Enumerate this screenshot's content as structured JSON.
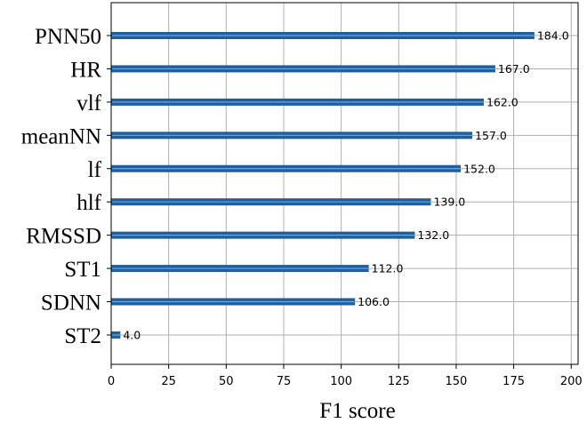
{
  "chart_data": {
    "type": "bar",
    "orientation": "horizontal",
    "categories": [
      "PNN50",
      "HR",
      "vlf",
      "meanNN",
      "lf",
      "hlf",
      "RMSSD",
      "ST1",
      "SDNN",
      "ST2"
    ],
    "values": [
      184.0,
      167.0,
      162.0,
      157.0,
      152.0,
      139.0,
      132.0,
      112.0,
      106.0,
      4.0
    ],
    "value_labels": [
      "184.0",
      "167.0",
      "162.0",
      "157.0",
      "152.0",
      "139.0",
      "132.0",
      "112.0",
      "106.0",
      "4.0"
    ],
    "xlabel": "F1 score",
    "ylabel": "",
    "title": "",
    "xlim": [
      0,
      203
    ],
    "xticks": [
      0,
      25,
      50,
      75,
      100,
      125,
      150,
      175,
      200
    ],
    "grid": true,
    "bar_color": "#1f5fa0",
    "bar_highlight_color": "#6fa8dc"
  }
}
